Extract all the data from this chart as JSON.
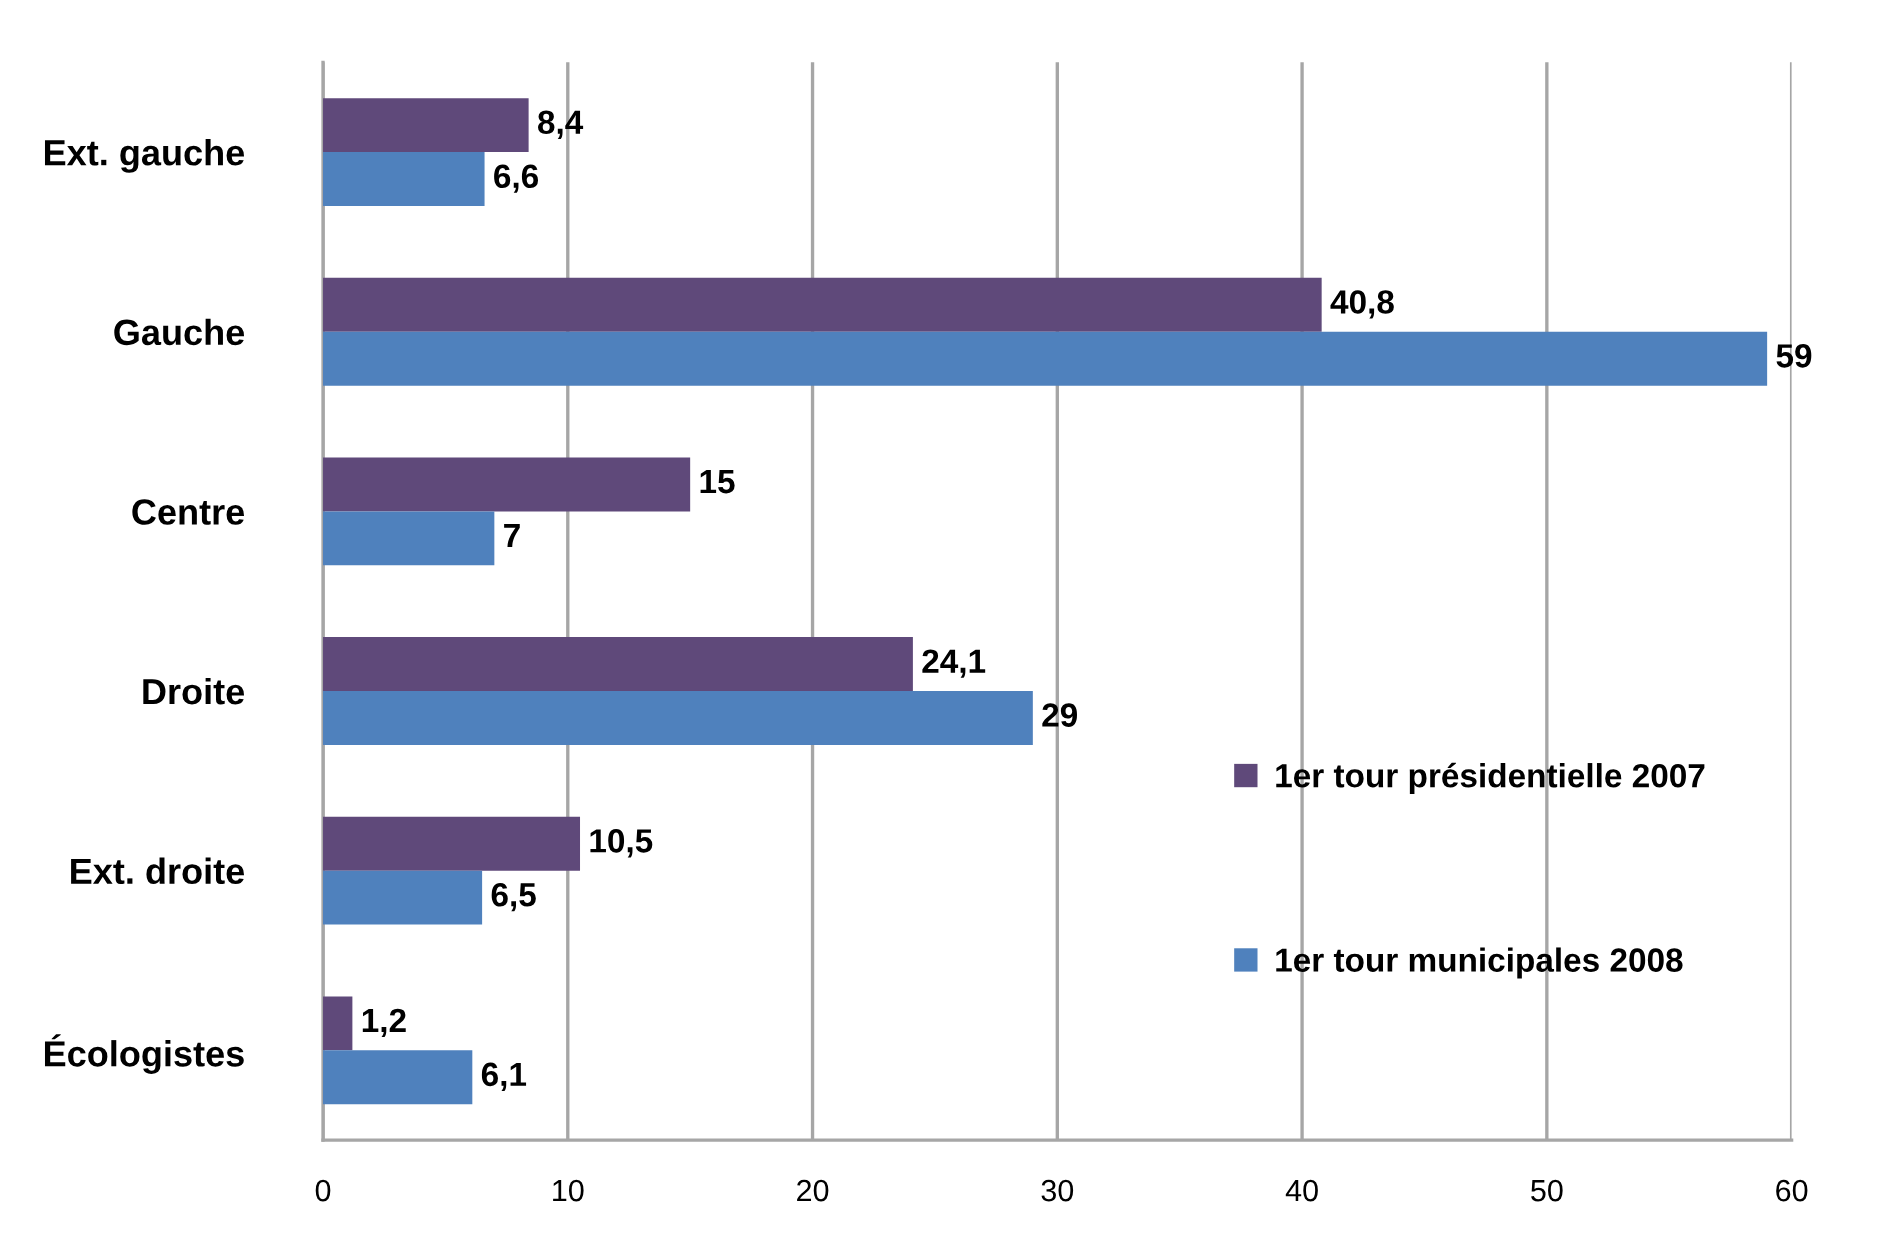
{
  "chart_data": {
    "type": "bar",
    "orientation": "horizontal",
    "categories": [
      "Ext. gauche",
      "Gauche",
      "Centre",
      "Droite",
      "Ext. droite",
      "Écologistes"
    ],
    "series": [
      {
        "name": "1er tour présidentielle 2007",
        "color": "#5f497a",
        "values": [
          8.4,
          40.8,
          15,
          24.1,
          10.5,
          1.2
        ],
        "value_labels": [
          "8,4",
          "40,8",
          "15",
          "24,1",
          "10,5",
          "1,2"
        ]
      },
      {
        "name": "1er tour municipales 2008",
        "color": "#4f81bd",
        "values": [
          6.6,
          59,
          7,
          29,
          6.5,
          6.1
        ],
        "value_labels": [
          "6,6",
          "59",
          "7",
          "29",
          "6,5",
          "6,1"
        ]
      }
    ],
    "xlim": [
      0,
      60
    ],
    "xticks": [
      0,
      10,
      20,
      30,
      40,
      50,
      60
    ],
    "grid": "x",
    "legend": "right"
  }
}
